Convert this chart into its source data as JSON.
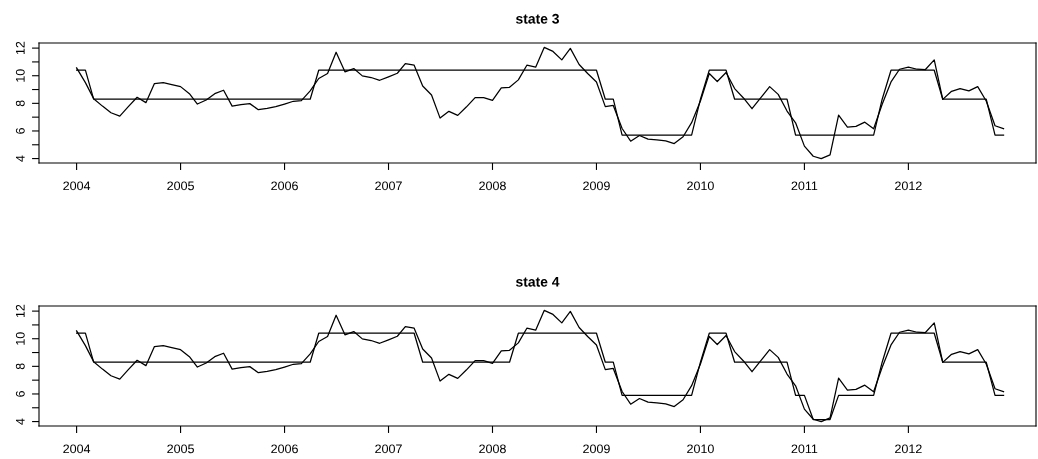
{
  "chart_data": [
    {
      "type": "line",
      "title": "state 3",
      "x": [
        "2004-01",
        "2004-02",
        "2004-03",
        "2004-04",
        "2004-05",
        "2004-06",
        "2004-07",
        "2004-08",
        "2004-09",
        "2004-10",
        "2004-11",
        "2004-12",
        "2005-01",
        "2005-02",
        "2005-03",
        "2005-04",
        "2005-05",
        "2005-06",
        "2005-07",
        "2005-08",
        "2005-09",
        "2005-10",
        "2005-11",
        "2005-12",
        "2006-01",
        "2006-02",
        "2006-03",
        "2006-04",
        "2006-05",
        "2006-06",
        "2006-07",
        "2006-08",
        "2006-09",
        "2006-10",
        "2006-11",
        "2006-12",
        "2007-01",
        "2007-02",
        "2007-03",
        "2007-04",
        "2007-05",
        "2007-06",
        "2007-07",
        "2007-08",
        "2007-09",
        "2007-10",
        "2007-11",
        "2007-12",
        "2008-01",
        "2008-02",
        "2008-03",
        "2008-04",
        "2008-05",
        "2008-06",
        "2008-07",
        "2008-08",
        "2008-09",
        "2008-10",
        "2008-11",
        "2008-12",
        "2009-01",
        "2009-02",
        "2009-03",
        "2009-04",
        "2009-05",
        "2009-06",
        "2009-07",
        "2009-08",
        "2009-09",
        "2009-10",
        "2009-11",
        "2009-12",
        "2010-01",
        "2010-02",
        "2010-03",
        "2010-04",
        "2010-05",
        "2010-06",
        "2010-07",
        "2010-08",
        "2010-09",
        "2010-10",
        "2010-11",
        "2010-12",
        "2011-01",
        "2011-02",
        "2011-03",
        "2011-04",
        "2011-05",
        "2011-06",
        "2011-07",
        "2011-08",
        "2011-09",
        "2011-10",
        "2011-11",
        "2011-12",
        "2012-01",
        "2012-02",
        "2012-03",
        "2012-04",
        "2012-05",
        "2012-06",
        "2012-07",
        "2012-08",
        "2012-09",
        "2012-10",
        "2012-11",
        "2012-12"
      ],
      "series": [
        {
          "color": "#000000",
          "values": [
            10.57,
            9.5,
            8.34,
            7.8,
            7.32,
            7.08,
            7.76,
            8.44,
            8.05,
            9.43,
            9.5,
            9.36,
            9.21,
            8.7,
            7.95,
            8.24,
            8.7,
            8.95,
            7.8,
            7.9,
            7.98,
            7.54,
            7.64,
            7.76,
            7.95,
            8.15,
            8.2,
            8.9,
            9.8,
            10.16,
            11.7,
            10.28,
            10.52,
            9.99,
            9.87,
            9.67,
            9.92,
            10.18,
            10.88,
            10.76,
            9.26,
            8.6,
            6.93,
            7.42,
            7.13,
            7.73,
            8.41,
            8.41,
            8.22,
            9.12,
            9.16,
            9.7,
            10.76,
            10.62,
            12.05,
            11.76,
            11.15,
            11.98,
            10.81,
            10.16,
            9.55,
            7.76,
            7.85,
            6.18,
            5.26,
            5.67,
            5.41,
            5.36,
            5.28,
            5.09,
            5.58,
            6.6,
            8.17,
            10.16,
            9.58,
            10.23,
            9.07,
            8.39,
            7.61,
            8.41,
            9.21,
            8.65,
            7.44,
            6.59,
            4.9,
            4.17,
            4.0,
            4.27,
            7.15,
            6.28,
            6.33,
            6.64,
            6.16,
            7.93,
            9.55,
            10.47,
            10.62,
            10.47,
            10.45,
            11.15,
            8.29,
            8.87,
            9.07,
            8.9,
            9.21,
            8.17,
            6.38,
            6.16
          ]
        },
        {
          "color": "#000000",
          "values": [
            10.4,
            10.4,
            8.3,
            8.3,
            8.3,
            8.3,
            8.3,
            8.3,
            8.3,
            8.3,
            8.3,
            8.3,
            8.3,
            8.3,
            8.3,
            8.3,
            8.3,
            8.3,
            8.3,
            8.3,
            8.3,
            8.3,
            8.3,
            8.3,
            8.3,
            8.3,
            8.3,
            8.3,
            10.4,
            10.4,
            10.4,
            10.4,
            10.4,
            10.4,
            10.4,
            10.4,
            10.4,
            10.4,
            10.4,
            10.4,
            10.4,
            10.4,
            10.4,
            10.4,
            10.4,
            10.4,
            10.4,
            10.4,
            10.4,
            10.4,
            10.4,
            10.4,
            10.4,
            10.4,
            10.4,
            10.4,
            10.4,
            10.4,
            10.4,
            10.4,
            10.4,
            8.3,
            8.3,
            5.7,
            5.7,
            5.7,
            5.7,
            5.7,
            5.7,
            5.7,
            5.7,
            5.7,
            8.3,
            10.4,
            10.4,
            10.4,
            8.3,
            8.3,
            8.3,
            8.3,
            8.3,
            8.3,
            8.3,
            5.7,
            5.7,
            5.7,
            5.7,
            5.7,
            5.7,
            5.7,
            5.7,
            5.7,
            5.7,
            8.3,
            10.4,
            10.4,
            10.4,
            10.4,
            10.4,
            10.4,
            8.3,
            8.3,
            8.3,
            8.3,
            8.3,
            8.3,
            5.7,
            5.7
          ]
        }
      ],
      "xlim": [
        "2003-08-22",
        "2013-03-25"
      ],
      "xticks": [
        "2004",
        "2005",
        "2006",
        "2007",
        "2008",
        "2009",
        "2010",
        "2011",
        "2012"
      ],
      "ylim": [
        3.68,
        12.37
      ],
      "yticks": [
        4,
        {
          "value": 5,
          "label": null
        },
        6,
        {
          "value": 7,
          "label": null
        },
        8,
        {
          "value": 9,
          "label": null
        },
        10,
        {
          "value": 11,
          "label": null
        },
        12
      ]
    },
    {
      "type": "line",
      "title": "state 4",
      "x": [
        "2004-01",
        "2004-02",
        "2004-03",
        "2004-04",
        "2004-05",
        "2004-06",
        "2004-07",
        "2004-08",
        "2004-09",
        "2004-10",
        "2004-11",
        "2004-12",
        "2005-01",
        "2005-02",
        "2005-03",
        "2005-04",
        "2005-05",
        "2005-06",
        "2005-07",
        "2005-08",
        "2005-09",
        "2005-10",
        "2005-11",
        "2005-12",
        "2006-01",
        "2006-02",
        "2006-03",
        "2006-04",
        "2006-05",
        "2006-06",
        "2006-07",
        "2006-08",
        "2006-09",
        "2006-10",
        "2006-11",
        "2006-12",
        "2007-01",
        "2007-02",
        "2007-03",
        "2007-04",
        "2007-05",
        "2007-06",
        "2007-07",
        "2007-08",
        "2007-09",
        "2007-10",
        "2007-11",
        "2007-12",
        "2008-01",
        "2008-02",
        "2008-03",
        "2008-04",
        "2008-05",
        "2008-06",
        "2008-07",
        "2008-08",
        "2008-09",
        "2008-10",
        "2008-11",
        "2008-12",
        "2009-01",
        "2009-02",
        "2009-03",
        "2009-04",
        "2009-05",
        "2009-06",
        "2009-07",
        "2009-08",
        "2009-09",
        "2009-10",
        "2009-11",
        "2009-12",
        "2010-01",
        "2010-02",
        "2010-03",
        "2010-04",
        "2010-05",
        "2010-06",
        "2010-07",
        "2010-08",
        "2010-09",
        "2010-10",
        "2010-11",
        "2010-12",
        "2011-01",
        "2011-02",
        "2011-03",
        "2011-04",
        "2011-05",
        "2011-06",
        "2011-07",
        "2011-08",
        "2011-09",
        "2011-10",
        "2011-11",
        "2011-12",
        "2012-01",
        "2012-02",
        "2012-03",
        "2012-04",
        "2012-05",
        "2012-06",
        "2012-07",
        "2012-08",
        "2012-09",
        "2012-10",
        "2012-11",
        "2012-12"
      ],
      "series": [
        {
          "color": "#000000",
          "values": [
            10.57,
            9.5,
            8.34,
            7.8,
            7.32,
            7.08,
            7.76,
            8.44,
            8.05,
            9.43,
            9.5,
            9.36,
            9.21,
            8.7,
            7.95,
            8.24,
            8.7,
            8.95,
            7.8,
            7.9,
            7.98,
            7.54,
            7.64,
            7.76,
            7.95,
            8.15,
            8.2,
            8.9,
            9.8,
            10.16,
            11.7,
            10.28,
            10.52,
            9.99,
            9.87,
            9.67,
            9.92,
            10.18,
            10.88,
            10.76,
            9.26,
            8.6,
            6.93,
            7.42,
            7.13,
            7.73,
            8.41,
            8.41,
            8.22,
            9.12,
            9.16,
            9.7,
            10.76,
            10.62,
            12.05,
            11.76,
            11.15,
            11.98,
            10.81,
            10.16,
            9.55,
            7.76,
            7.85,
            6.18,
            5.26,
            5.67,
            5.41,
            5.36,
            5.28,
            5.09,
            5.58,
            6.6,
            8.17,
            10.16,
            9.58,
            10.23,
            9.07,
            8.39,
            7.61,
            8.41,
            9.21,
            8.65,
            7.44,
            6.59,
            4.9,
            4.17,
            4.0,
            4.27,
            7.15,
            6.28,
            6.33,
            6.64,
            6.16,
            7.93,
            9.55,
            10.47,
            10.62,
            10.47,
            10.45,
            11.15,
            8.29,
            8.87,
            9.07,
            8.9,
            9.21,
            8.17,
            6.38,
            6.16
          ]
        },
        {
          "color": "#000000",
          "values": [
            10.4,
            10.4,
            8.3,
            8.3,
            8.3,
            8.3,
            8.3,
            8.3,
            8.3,
            8.3,
            8.3,
            8.3,
            8.3,
            8.3,
            8.3,
            8.3,
            8.3,
            8.3,
            8.3,
            8.3,
            8.3,
            8.3,
            8.3,
            8.3,
            8.3,
            8.3,
            8.3,
            8.3,
            10.4,
            10.4,
            10.4,
            10.4,
            10.4,
            10.4,
            10.4,
            10.4,
            10.4,
            10.4,
            10.4,
            10.4,
            8.3,
            8.3,
            8.3,
            8.3,
            8.3,
            8.3,
            8.3,
            8.3,
            8.3,
            8.3,
            8.3,
            10.4,
            10.4,
            10.4,
            10.4,
            10.4,
            10.4,
            10.4,
            10.4,
            10.4,
            10.4,
            8.3,
            8.3,
            5.9,
            5.9,
            5.9,
            5.9,
            5.9,
            5.9,
            5.9,
            5.9,
            5.9,
            8.3,
            10.4,
            10.4,
            10.4,
            8.3,
            8.3,
            8.3,
            8.3,
            8.3,
            8.3,
            8.3,
            5.9,
            5.9,
            4.15,
            4.15,
            4.15,
            5.9,
            5.9,
            5.9,
            5.9,
            5.9,
            8.3,
            10.4,
            10.4,
            10.4,
            10.4,
            10.4,
            10.4,
            8.3,
            8.3,
            8.3,
            8.3,
            8.3,
            8.3,
            5.9,
            5.9
          ]
        }
      ],
      "xlim": [
        "2003-08-22",
        "2013-03-25"
      ],
      "xticks": [
        "2004",
        "2005",
        "2006",
        "2007",
        "2008",
        "2009",
        "2010",
        "2011",
        "2012"
      ],
      "ylim": [
        3.68,
        12.37
      ],
      "yticks": [
        4,
        {
          "value": 5,
          "label": null
        },
        6,
        {
          "value": 7,
          "label": null
        },
        8,
        {
          "value": 9,
          "label": null
        },
        10,
        {
          "value": 11,
          "label": null
        },
        12
      ]
    }
  ]
}
